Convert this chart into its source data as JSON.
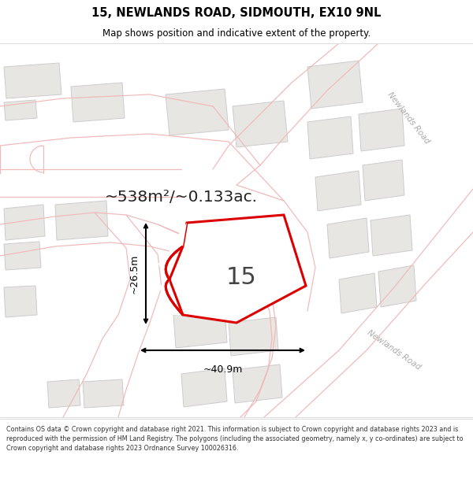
{
  "title": "15, NEWLANDS ROAD, SIDMOUTH, EX10 9NL",
  "subtitle": "Map shows position and indicative extent of the property.",
  "area_text": "~538m²/~0.133ac.",
  "width_label": "~40.9m",
  "height_label": "~26.5m",
  "property_number": "15",
  "footer": "Contains OS data © Crown copyright and database right 2021. This information is subject to Crown copyright and database rights 2023 and is reproduced with the permission of HM Land Registry. The polygons (including the associated geometry, namely x, y co-ordinates) are subject to Crown copyright and database rights 2023 Ordnance Survey 100026316.",
  "map_bg": "#f7f6f4",
  "building_color": "#e8e6e3",
  "building_outline": "#cccccc",
  "road_line_color": "#f0b8b8",
  "highlight_color": "#dd0000",
  "road_label_color": "#aaaaaa",
  "title_color": "#000000",
  "footer_color": "#333333",
  "white": "#ffffff",
  "newlands_road_upper": "Newlands Road",
  "newlands_road_lower": "Newlands Road"
}
